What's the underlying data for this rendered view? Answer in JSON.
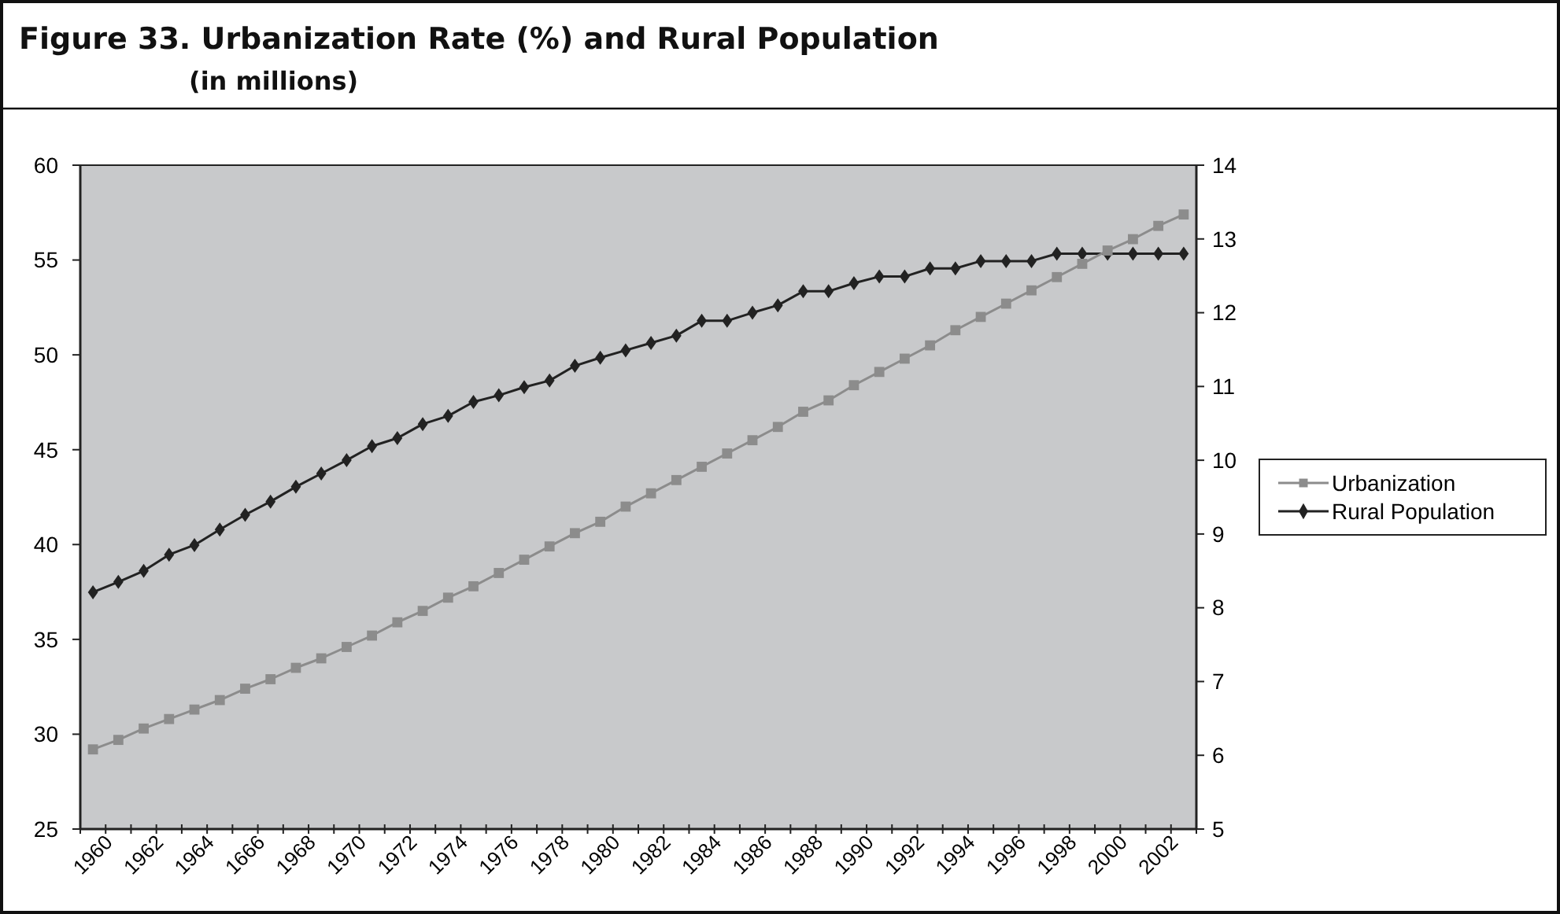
{
  "chart_data": {
    "type": "line",
    "title": "Figure 33.  Urbanization Rate (%) and Rural Population",
    "subtitle": "(in millions)",
    "categories": [
      "1960",
      null,
      "1962",
      null,
      "1964",
      null,
      "1666",
      null,
      "1968",
      null,
      "1970",
      null,
      "1972",
      null,
      "1974",
      null,
      "1976",
      null,
      "1978",
      null,
      "1980",
      null,
      "1982",
      null,
      "1984",
      null,
      "1986",
      null,
      "1988",
      null,
      "1990",
      null,
      "1992",
      null,
      "1994",
      null,
      "1996",
      null,
      "1998",
      null,
      "2000",
      null,
      "2002",
      null
    ],
    "series": [
      {
        "name": "Urbanization",
        "color": "#8c8c8c",
        "marker": "square",
        "values": [
          29.2,
          29.7,
          30.3,
          30.8,
          31.3,
          31.8,
          32.4,
          32.9,
          33.5,
          34.0,
          34.6,
          35.2,
          35.9,
          36.5,
          37.2,
          37.8,
          38.5,
          39.2,
          39.9,
          40.6,
          41.2,
          42.0,
          42.7,
          43.4,
          44.1,
          44.8,
          45.5,
          46.2,
          47.0,
          47.6,
          48.4,
          49.1,
          49.8,
          50.5,
          51.3,
          52.0,
          52.7,
          53.4,
          54.1,
          54.8,
          55.5,
          56.1,
          56.8,
          57.4
        ]
      },
      {
        "name": "Rural Population",
        "color": "#222222",
        "marker": "diamond",
        "axis": "y2",
        "values": [
          8.21,
          8.35,
          8.5,
          8.72,
          8.85,
          9.06,
          9.26,
          9.44,
          9.64,
          9.82,
          10.0,
          10.19,
          10.3,
          10.49,
          10.6,
          10.79,
          10.88,
          10.99,
          11.08,
          11.28,
          11.39,
          11.49,
          11.59,
          11.69,
          11.89,
          11.89,
          12.0,
          12.1,
          12.29,
          12.29,
          12.4,
          12.49,
          12.49,
          12.6,
          12.6,
          12.7,
          12.7,
          12.7,
          12.8,
          12.8,
          12.8,
          12.8,
          12.8,
          12.8
        ]
      }
    ],
    "ylim": [
      25,
      60
    ],
    "yticks": [
      25,
      30,
      35,
      40,
      45,
      50,
      55,
      60
    ],
    "y2lim": [
      5,
      14
    ],
    "y2ticks": [
      5,
      6,
      7,
      8,
      9,
      10,
      11,
      12,
      13,
      14
    ],
    "grid": false,
    "legend": "right",
    "line_style": "solid"
  }
}
